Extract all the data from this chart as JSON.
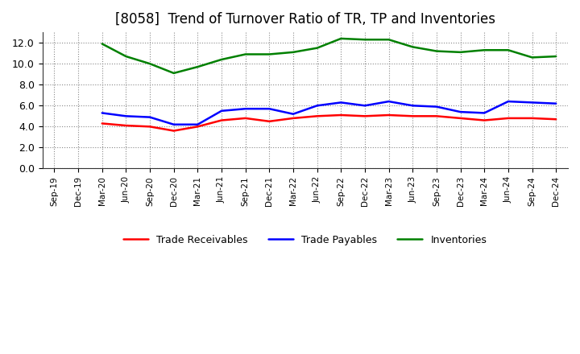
{
  "title": "[8058]  Trend of Turnover Ratio of TR, TP and Inventories",
  "labels": [
    "Sep-19",
    "Dec-19",
    "Mar-20",
    "Jun-20",
    "Sep-20",
    "Dec-20",
    "Mar-21",
    "Jun-21",
    "Sep-21",
    "Dec-21",
    "Mar-22",
    "Jun-22",
    "Sep-22",
    "Dec-22",
    "Mar-23",
    "Jun-23",
    "Sep-23",
    "Dec-23",
    "Mar-24",
    "Jun-24",
    "Sep-24",
    "Dec-24"
  ],
  "trade_receivables": [
    null,
    null,
    4.3,
    4.1,
    4.0,
    3.6,
    4.0,
    4.6,
    4.8,
    4.5,
    4.8,
    5.0,
    5.1,
    5.0,
    5.1,
    5.0,
    5.0,
    4.8,
    4.6,
    4.8,
    4.8,
    4.7
  ],
  "trade_payables": [
    null,
    null,
    5.3,
    5.0,
    4.9,
    4.2,
    4.2,
    5.5,
    5.7,
    5.7,
    5.2,
    6.0,
    6.3,
    6.0,
    6.4,
    6.0,
    5.9,
    5.4,
    5.3,
    6.4,
    6.3,
    6.2
  ],
  "inventories": [
    null,
    null,
    11.9,
    10.7,
    10.0,
    9.1,
    9.7,
    10.4,
    10.9,
    10.9,
    11.1,
    11.5,
    12.4,
    12.3,
    12.3,
    11.6,
    11.2,
    11.1,
    11.3,
    11.3,
    10.6,
    10.7
  ],
  "ylim": [
    0,
    13
  ],
  "yticks": [
    0.0,
    2.0,
    4.0,
    6.0,
    8.0,
    10.0,
    12.0
  ],
  "tr_color": "#ff0000",
  "tp_color": "#0000ff",
  "inv_color": "#008000",
  "legend_tr": "Trade Receivables",
  "legend_tp": "Trade Payables",
  "legend_inv": "Inventories",
  "background_color": "#ffffff",
  "grid_color": "#888888",
  "title_fontsize": 12
}
